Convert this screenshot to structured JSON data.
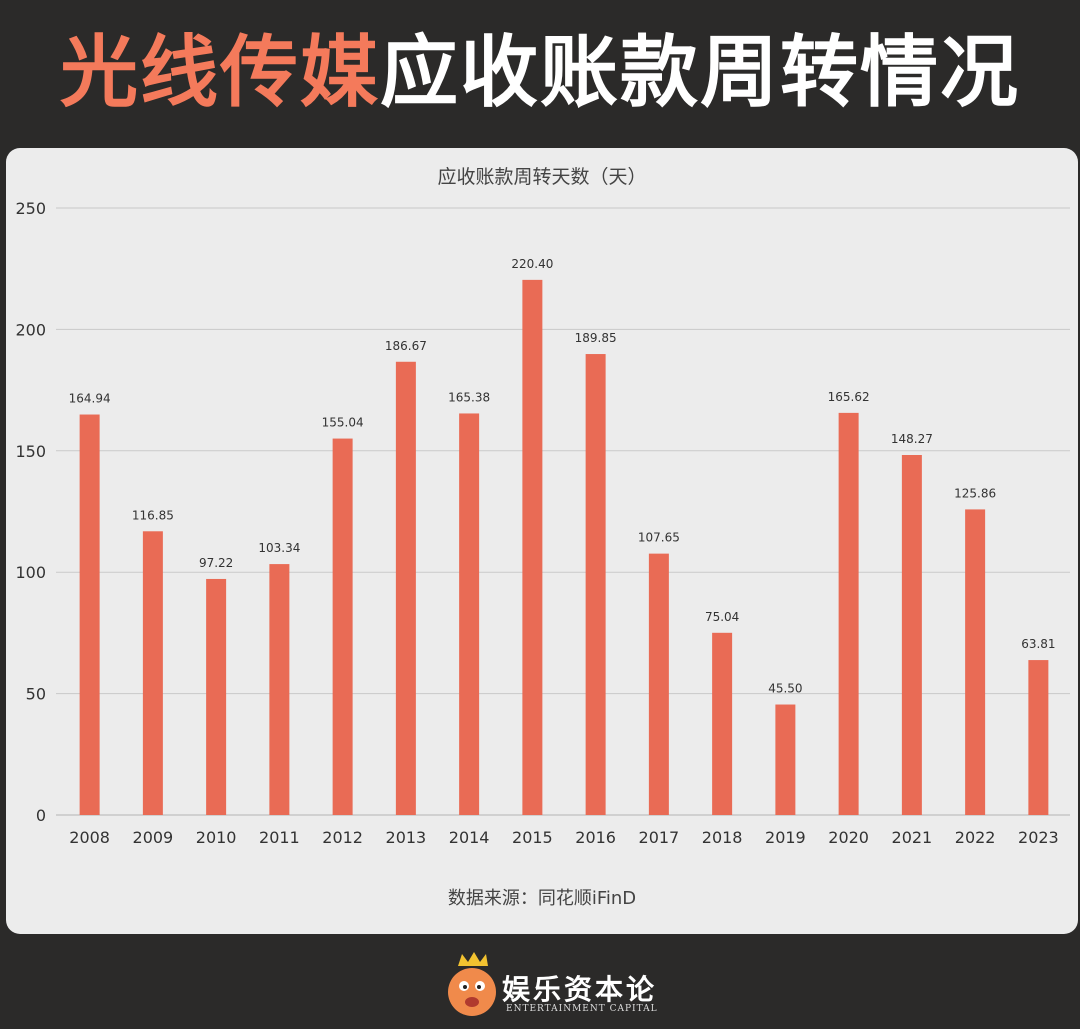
{
  "header": {
    "title_accent": "光线传媒",
    "title_rest": "应收账款周转情况"
  },
  "colors": {
    "background": "#2b2a29",
    "accent": "#f47a5b",
    "bar": "#e96b55",
    "card": "#ececec",
    "gridline": "#c9c9c9"
  },
  "chart_data": {
    "type": "bar",
    "title": "应收账款周转天数（天）",
    "xlabel": "",
    "ylabel": "",
    "ylim": [
      0,
      250
    ],
    "yticks": [
      0,
      50,
      100,
      150,
      200,
      250
    ],
    "grid": true,
    "categories": [
      "2008",
      "2009",
      "2010",
      "2011",
      "2012",
      "2013",
      "2014",
      "2015",
      "2016",
      "2017",
      "2018",
      "2019",
      "2020",
      "2021",
      "2022",
      "2023"
    ],
    "values": [
      164.94,
      116.85,
      97.22,
      103.34,
      155.04,
      186.67,
      165.38,
      220.4,
      189.85,
      107.65,
      75.04,
      45.5,
      165.62,
      148.27,
      125.86,
      63.81
    ],
    "value_labels": [
      "164.94",
      "116.85",
      "97.22",
      "103.34",
      "155.04",
      "186.67",
      "165.38",
      "220.40",
      "189.85",
      "107.65",
      "75.04",
      "45.50",
      "165.62",
      "148.27",
      "125.86",
      "63.81"
    ]
  },
  "source_note": "数据来源：同花顺iFinD",
  "brand": {
    "name": "娱乐资本论",
    "subtitle": "ENTERTAINMENT CAPITAL"
  }
}
